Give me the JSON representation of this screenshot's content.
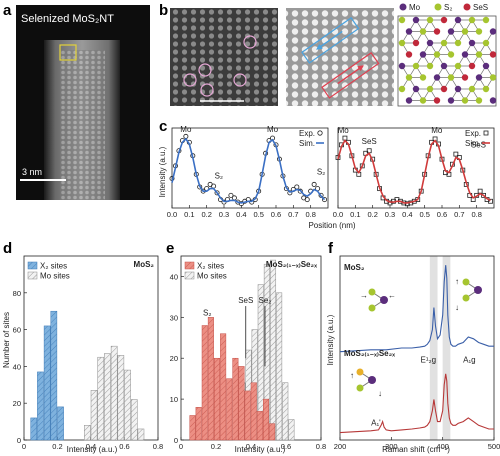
{
  "panels": {
    "a": {
      "label": "a",
      "title": "Selenized MoS₂NT",
      "scalebar": "3 nm"
    },
    "b": {
      "label": "b",
      "legend": [
        "Mo",
        "S₂",
        "SeS"
      ],
      "colors": {
        "Mo": "#5b2d7c",
        "S2": "#a6c52f",
        "SeS": "#c0283a"
      }
    },
    "c": {
      "label": "c"
    },
    "d": {
      "label": "d"
    },
    "e": {
      "label": "e"
    },
    "f": {
      "label": "f"
    }
  },
  "chart_data": [
    {
      "id": "c-left",
      "type": "line",
      "xlabel": "",
      "ylabel": "Intensity (a.u.)",
      "xlim": [
        0,
        0.9
      ],
      "xticks": [
        "0.0",
        "0.1",
        "0.2",
        "0.3",
        "0.4",
        "0.5",
        "0.6",
        "0.7",
        "0.8"
      ],
      "legend": [
        "Exp.",
        "Sim."
      ],
      "annotations": [
        "Mo",
        "S₂",
        "Mo",
        "S₂"
      ],
      "series": [
        {
          "name": "Exp.",
          "style": "open-circle",
          "x": [
            0.0,
            0.02,
            0.04,
            0.06,
            0.08,
            0.1,
            0.12,
            0.14,
            0.16,
            0.18,
            0.2,
            0.22,
            0.24,
            0.26,
            0.28,
            0.3,
            0.32,
            0.34,
            0.36,
            0.38,
            0.4,
            0.42,
            0.44,
            0.46,
            0.48,
            0.5,
            0.52,
            0.54,
            0.56,
            0.58,
            0.6,
            0.62,
            0.64,
            0.66,
            0.68,
            0.7,
            0.72,
            0.74,
            0.76,
            0.78,
            0.8,
            0.82,
            0.84,
            0.86,
            0.88
          ],
          "y": [
            0.45,
            0.6,
            0.78,
            0.9,
            0.95,
            0.88,
            0.72,
            0.5,
            0.35,
            0.3,
            0.33,
            0.38,
            0.36,
            0.28,
            0.2,
            0.17,
            0.2,
            0.25,
            0.22,
            0.17,
            0.15,
            0.18,
            0.2,
            0.17,
            0.2,
            0.3,
            0.5,
            0.75,
            0.9,
            0.93,
            0.85,
            0.68,
            0.48,
            0.33,
            0.28,
            0.32,
            0.35,
            0.3,
            0.22,
            0.2,
            0.3,
            0.38,
            0.33,
            0.25,
            0.2
          ]
        },
        {
          "name": "Sim.",
          "style": "line",
          "x": [
            0.0,
            0.02,
            0.04,
            0.06,
            0.08,
            0.1,
            0.12,
            0.14,
            0.16,
            0.18,
            0.2,
            0.22,
            0.24,
            0.26,
            0.28,
            0.3,
            0.32,
            0.34,
            0.36,
            0.38,
            0.4,
            0.42,
            0.44,
            0.46,
            0.48,
            0.5,
            0.52,
            0.54,
            0.56,
            0.58,
            0.6,
            0.62,
            0.64,
            0.66,
            0.68,
            0.7,
            0.72,
            0.74,
            0.76,
            0.78,
            0.8,
            0.82,
            0.84,
            0.86,
            0.88
          ],
          "y": [
            0.4,
            0.58,
            0.76,
            0.88,
            0.92,
            0.86,
            0.7,
            0.5,
            0.36,
            0.3,
            0.3,
            0.33,
            0.33,
            0.28,
            0.22,
            0.18,
            0.18,
            0.19,
            0.19,
            0.17,
            0.16,
            0.17,
            0.18,
            0.18,
            0.21,
            0.3,
            0.5,
            0.72,
            0.88,
            0.91,
            0.84,
            0.67,
            0.48,
            0.34,
            0.29,
            0.3,
            0.32,
            0.31,
            0.26,
            0.24,
            0.27,
            0.32,
            0.3,
            0.24,
            0.2
          ]
        }
      ]
    },
    {
      "id": "c-right",
      "type": "line",
      "xlabel": "Position (nm)",
      "ylabel": "",
      "xlim": [
        0,
        0.9
      ],
      "xticks": [
        "0.0",
        "0.1",
        "0.2",
        "0.3",
        "0.4",
        "0.5",
        "0.6",
        "0.7",
        "0.8"
      ],
      "legend": [
        "Exp.",
        "Sim."
      ],
      "annotations": [
        "Mo",
        "SeS",
        "Mo",
        "SeS"
      ],
      "series": [
        {
          "name": "Exp.",
          "style": "open-square",
          "x": [
            0.0,
            0.02,
            0.04,
            0.06,
            0.08,
            0.1,
            0.12,
            0.14,
            0.16,
            0.18,
            0.2,
            0.22,
            0.24,
            0.26,
            0.28,
            0.3,
            0.32,
            0.34,
            0.36,
            0.38,
            0.4,
            0.42,
            0.44,
            0.46,
            0.48,
            0.5,
            0.52,
            0.54,
            0.56,
            0.58,
            0.6,
            0.62,
            0.64,
            0.66,
            0.68,
            0.7,
            0.72,
            0.74,
            0.76,
            0.78,
            0.8,
            0.82,
            0.84,
            0.86,
            0.88
          ],
          "y": [
            0.7,
            0.85,
            0.93,
            0.88,
            0.72,
            0.55,
            0.5,
            0.6,
            0.75,
            0.78,
            0.68,
            0.5,
            0.33,
            0.22,
            0.18,
            0.16,
            0.18,
            0.2,
            0.18,
            0.16,
            0.15,
            0.16,
            0.18,
            0.2,
            0.3,
            0.5,
            0.72,
            0.88,
            0.92,
            0.86,
            0.68,
            0.52,
            0.5,
            0.62,
            0.74,
            0.7,
            0.55,
            0.38,
            0.25,
            0.2,
            0.25,
            0.3,
            0.25,
            0.2,
            0.18
          ]
        },
        {
          "name": "Sim.",
          "style": "line",
          "x": [
            0.0,
            0.02,
            0.04,
            0.06,
            0.08,
            0.1,
            0.12,
            0.14,
            0.16,
            0.18,
            0.2,
            0.22,
            0.24,
            0.26,
            0.28,
            0.3,
            0.32,
            0.34,
            0.36,
            0.38,
            0.4,
            0.42,
            0.44,
            0.46,
            0.48,
            0.5,
            0.52,
            0.54,
            0.56,
            0.58,
            0.6,
            0.62,
            0.64,
            0.66,
            0.68,
            0.7,
            0.72,
            0.74,
            0.76,
            0.78,
            0.8,
            0.82,
            0.84,
            0.86,
            0.88
          ],
          "y": [
            0.68,
            0.83,
            0.9,
            0.86,
            0.72,
            0.57,
            0.52,
            0.6,
            0.72,
            0.75,
            0.66,
            0.5,
            0.34,
            0.24,
            0.19,
            0.17,
            0.17,
            0.18,
            0.18,
            0.16,
            0.16,
            0.17,
            0.18,
            0.2,
            0.3,
            0.5,
            0.7,
            0.86,
            0.9,
            0.84,
            0.68,
            0.54,
            0.52,
            0.6,
            0.7,
            0.68,
            0.55,
            0.4,
            0.28,
            0.22,
            0.24,
            0.27,
            0.25,
            0.21,
            0.19
          ]
        }
      ]
    },
    {
      "id": "d",
      "type": "bar",
      "title": "MoS₂",
      "xlabel": "Intensity (a.u.)",
      "ylabel": "Number of sites",
      "xlim": [
        0,
        0.8
      ],
      "ylim": [
        0,
        100
      ],
      "xticks": [
        "0",
        "0.2",
        "0.4",
        "0.6",
        "0.8"
      ],
      "yticks": [
        "0",
        "20",
        "40",
        "60",
        "80"
      ],
      "legend": [
        "X₂ sites",
        "Mo sites"
      ],
      "bin_width": 0.04,
      "series": [
        {
          "name": "X₂ sites",
          "color": "#6aa6d8",
          "bin_starts": [
            0.04,
            0.08,
            0.12,
            0.16,
            0.2
          ],
          "values": [
            12,
            37,
            62,
            70,
            18
          ]
        },
        {
          "name": "Mo sites",
          "color": "#d0d0d0",
          "bin_starts": [
            0.36,
            0.4,
            0.44,
            0.48,
            0.52,
            0.56,
            0.6,
            0.64,
            0.68
          ],
          "values": [
            8,
            27,
            45,
            47,
            51,
            46,
            38,
            22,
            6
          ]
        }
      ]
    },
    {
      "id": "e",
      "type": "bar",
      "title": "MoS₂₍₁₋ₓ₎Se₂ₓ",
      "xlabel": "Intensity (a.u.)",
      "ylabel": "",
      "xlim": [
        0,
        0.8
      ],
      "ylim": [
        0,
        45
      ],
      "xticks": [
        "0",
        "0.2",
        "0.4",
        "0.6",
        "0.8"
      ],
      "yticks": [
        "0",
        "10",
        "20",
        "30",
        "40"
      ],
      "legend": [
        "X₂ sites",
        "Mo sites"
      ],
      "annotations": [
        "S₂",
        "SeS",
        "Se₂"
      ],
      "bin_width": 0.035,
      "series": [
        {
          "name": "X₂ sites",
          "color": "#e68479",
          "bin_starts": [
            0.05,
            0.085,
            0.12,
            0.155,
            0.19,
            0.225,
            0.26,
            0.295,
            0.33,
            0.365,
            0.4,
            0.435,
            0.47,
            0.505
          ],
          "values": [
            6,
            8,
            28,
            30,
            20,
            26,
            15,
            20,
            18,
            12,
            14,
            7,
            10,
            4
          ]
        },
        {
          "name": "Mo sites",
          "color": "#d0d0d0",
          "bin_starts": [
            0.3,
            0.335,
            0.37,
            0.405,
            0.44,
            0.475,
            0.51,
            0.545,
            0.58,
            0.615
          ],
          "values": [
            6,
            14,
            22,
            27,
            38,
            43,
            44,
            36,
            14,
            5
          ]
        }
      ]
    },
    {
      "id": "f",
      "type": "line",
      "xlabel": "Raman shift (cm⁻¹)",
      "ylabel": "Intensity (a.u.)",
      "xlim": [
        200,
        500
      ],
      "xticks": [
        "200",
        "300",
        "400",
        "500"
      ],
      "labels": [
        "MoS₂",
        "MoS₂₍₁₋ₓ₎Se₂ₓ"
      ],
      "annotations": [
        "E¹₂g",
        "A₁g",
        "A₁'"
      ],
      "shaded_bands": [
        [
          375,
          390
        ],
        [
          400,
          415
        ]
      ],
      "series": [
        {
          "name": "MoS₂",
          "color": "#3a5fa8",
          "x": [
            200,
            230,
            260,
            290,
            320,
            340,
            355,
            365,
            370,
            375,
            380,
            383,
            386,
            390,
            395,
            400,
            403,
            406,
            408,
            410,
            413,
            416,
            420,
            425,
            430,
            440,
            450,
            460,
            470,
            480,
            490,
            500
          ],
          "y": [
            0.48,
            0.485,
            0.49,
            0.49,
            0.5,
            0.5,
            0.505,
            0.51,
            0.52,
            0.54,
            0.6,
            0.72,
            0.62,
            0.55,
            0.57,
            0.68,
            0.86,
            0.95,
            0.88,
            0.68,
            0.56,
            0.52,
            0.51,
            0.51,
            0.52,
            0.53,
            0.56,
            0.55,
            0.53,
            0.52,
            0.51,
            0.51
          ]
        },
        {
          "name": "MoS₂₍₁₋ₓ₎Se₂ₓ",
          "color": "#b73838",
          "x": [
            200,
            230,
            260,
            275,
            280,
            283,
            286,
            290,
            300,
            320,
            340,
            355,
            365,
            370,
            375,
            380,
            383,
            386,
            390,
            395,
            400,
            403,
            406,
            408,
            410,
            413,
            416,
            420,
            425,
            430,
            440,
            450,
            460,
            470,
            480,
            490,
            500
          ],
          "y": [
            0.04,
            0.045,
            0.05,
            0.055,
            0.08,
            0.1,
            0.07,
            0.055,
            0.05,
            0.055,
            0.06,
            0.065,
            0.07,
            0.08,
            0.1,
            0.16,
            0.22,
            0.16,
            0.1,
            0.1,
            0.16,
            0.3,
            0.36,
            0.32,
            0.2,
            0.12,
            0.09,
            0.08,
            0.08,
            0.09,
            0.1,
            0.12,
            0.1,
            0.08,
            0.07,
            0.06,
            0.06
          ]
        }
      ]
    }
  ]
}
